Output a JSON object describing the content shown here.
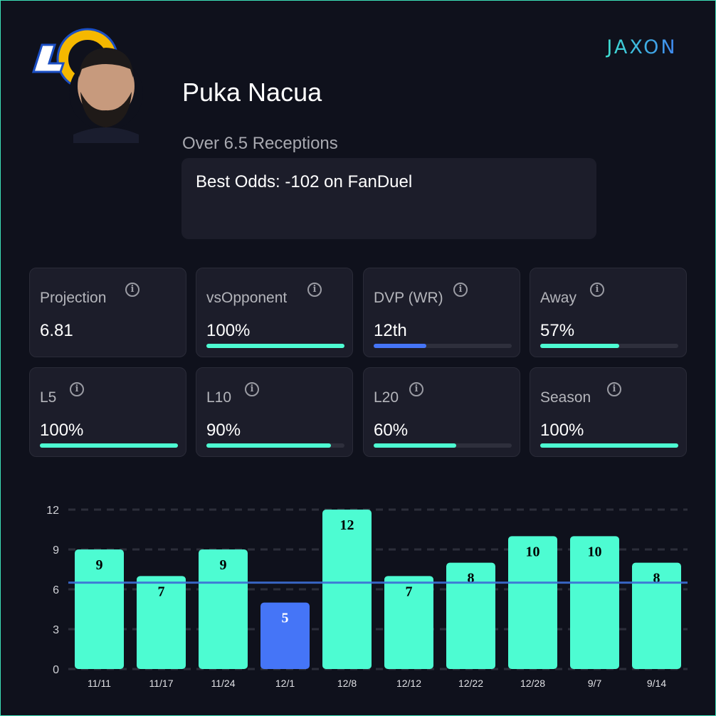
{
  "player": {
    "name": "Puka Nacua",
    "prop": "Over 6.5 Receptions",
    "best_odds": "Best Odds: -102 on FanDuel",
    "team_logo": "LA Rams logo",
    "brand": "JAXON"
  },
  "colors": {
    "accent": "#4dfcd2",
    "below": "#4575f7",
    "card": "#1c1d2a",
    "bg": "#0f111c"
  },
  "stats": [
    {
      "label": "Projection",
      "value": "6.81",
      "progress": null,
      "color": "#4dfcd2"
    },
    {
      "label": "vsOpponent",
      "value": "100%",
      "progress": 1.0,
      "color": "#4dfcd2"
    },
    {
      "label": "DVP (WR)",
      "value": "12th",
      "progress": 0.38,
      "color": "#4575f7"
    },
    {
      "label": "Away",
      "value": "57%",
      "progress": 0.57,
      "color": "#4dfcd2"
    },
    {
      "label": "L5",
      "value": "100%",
      "progress": 1.0,
      "color": "#4dfcd2"
    },
    {
      "label": "L10",
      "value": "90%",
      "progress": 0.9,
      "color": "#4dfcd2"
    },
    {
      "label": "L20",
      "value": "60%",
      "progress": 0.6,
      "color": "#4dfcd2"
    },
    {
      "label": "Season",
      "value": "100%",
      "progress": 1.0,
      "color": "#4dfcd2"
    }
  ],
  "chart_data": {
    "type": "bar",
    "categories": [
      "11/11",
      "11/17",
      "11/24",
      "12/1",
      "12/8",
      "12/12",
      "12/22",
      "12/28",
      "9/7",
      "9/14"
    ],
    "values": [
      9,
      7,
      9,
      5,
      12,
      7,
      8,
      10,
      10,
      8
    ],
    "line": 6.5,
    "ylim": [
      0,
      12
    ],
    "yticks": [
      "0",
      "3",
      "6",
      "9",
      "12"
    ],
    "grid": true
  }
}
